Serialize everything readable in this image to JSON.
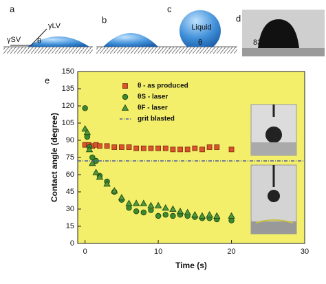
{
  "panels": {
    "a": "a",
    "b": "b",
    "c": "c",
    "d": "d",
    "gamma_lv": "γLV",
    "gamma_sv": "γSV",
    "theta_a": "θ",
    "theta_c": "θ",
    "liquid": "Liquid",
    "angle_d": "83°"
  },
  "chart_data": {
    "type": "scatter",
    "panel_label": "e",
    "x_label": "Time (s)",
    "y_label": "Contact angle (degree)",
    "xlim": [
      -1,
      30
    ],
    "ylim": [
      0,
      150
    ],
    "xticks": [
      0,
      10,
      20,
      30
    ],
    "yticks": [
      0,
      15,
      30,
      45,
      60,
      75,
      90,
      105,
      120,
      135,
      150
    ],
    "background": "#f3ef6a",
    "series": [
      {
        "name": "θ - as produced",
        "color": "#d9542b",
        "marker": "square",
        "x": [
          0,
          0.5,
          1,
          1.5,
          2,
          3,
          4,
          5,
          6,
          7,
          8,
          9,
          10,
          11,
          12,
          13,
          14,
          15,
          16,
          17,
          18,
          20
        ],
        "values": [
          86,
          86,
          85,
          86,
          85,
          85,
          84,
          84,
          84,
          83,
          83,
          83,
          83,
          83,
          82,
          82,
          82,
          83,
          82,
          84,
          84,
          82
        ]
      },
      {
        "name": "θS - laser",
        "color": "#3a8a2e",
        "marker": "circle",
        "x": [
          0,
          0.3,
          0.6,
          1,
          1.5,
          2,
          3,
          4,
          5,
          6,
          7,
          8,
          9,
          10,
          11,
          12,
          13,
          14,
          15,
          16,
          17,
          18,
          20
        ],
        "values": [
          118,
          93,
          84,
          75,
          72,
          59,
          54,
          45,
          38,
          31,
          28,
          27,
          29,
          24,
          25,
          24,
          25,
          24,
          23,
          22,
          22,
          21,
          20
        ]
      },
      {
        "name": "θF - laser",
        "color": "#4c9a3a",
        "marker": "triangle",
        "x": [
          0,
          0.3,
          0.6,
          1,
          1.5,
          2,
          3,
          4,
          5,
          6,
          7,
          8,
          9,
          10,
          11,
          12,
          13,
          14,
          15,
          16,
          17,
          18,
          20
        ],
        "values": [
          100,
          97,
          82,
          70,
          62,
          58,
          52,
          46,
          40,
          35,
          35,
          35,
          33,
          33,
          31,
          30,
          28,
          27,
          25,
          24,
          25,
          24,
          24
        ]
      },
      {
        "name": "grit blasted",
        "color": "#4a5aa0",
        "marker": "dashed-line",
        "value": 72
      }
    ]
  }
}
